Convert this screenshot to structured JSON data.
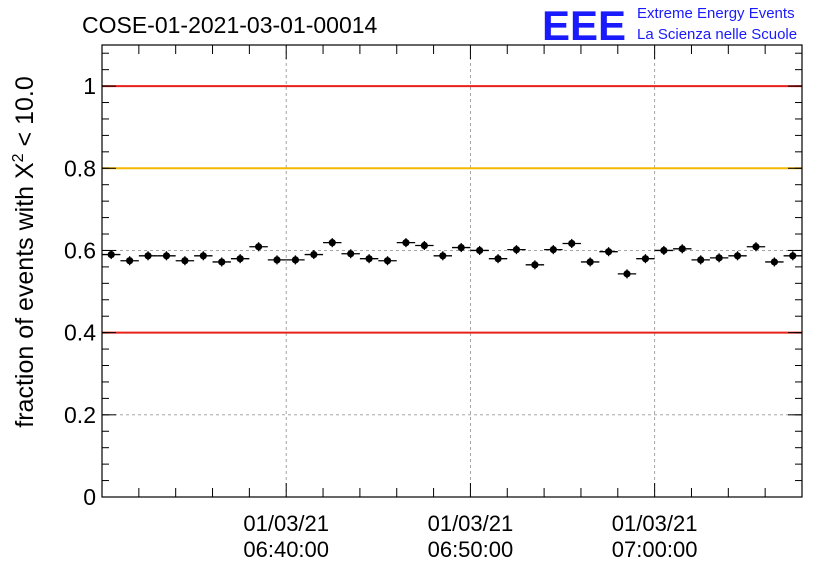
{
  "chart_data": {
    "type": "scatter",
    "title": "COSE-01-2021-03-01-00014",
    "ylabel": "fraction of events with X",
    "ylabel_sup": "2",
    "ylabel_tail": " < 10.0",
    "logo": {
      "letters": "EEE",
      "line1": "Extreme Energy Events",
      "line2": "La Scienza nelle Scuole",
      "color": "#1a1aff"
    },
    "ylim": [
      0,
      1.1
    ],
    "yticks": [
      {
        "value": 0,
        "label": "0"
      },
      {
        "value": 0.2,
        "label": "0.2"
      },
      {
        "value": 0.4,
        "label": "0.4"
      },
      {
        "value": 0.6,
        "label": "0.6"
      },
      {
        "value": 0.8,
        "label": "0.8"
      },
      {
        "value": 1,
        "label": "1"
      }
    ],
    "xlim_minutes": [
      0,
      38
    ],
    "xticks": [
      {
        "minute": 10,
        "date": "01/03/21",
        "time": "06:40:00"
      },
      {
        "minute": 20,
        "date": "01/03/21",
        "time": "06:50:00"
      },
      {
        "minute": 30,
        "date": "01/03/21",
        "time": "07:00:00"
      }
    ],
    "grid": true,
    "reference_lines": [
      {
        "value": 1.0,
        "color": "#e8201a"
      },
      {
        "value": 0.8,
        "color": "#f5b800"
      },
      {
        "value": 0.4,
        "color": "#e8201a"
      }
    ],
    "marker_color": "#000000",
    "y_error": 0.011,
    "values": [
      0.59,
      0.575,
      0.587,
      0.587,
      0.575,
      0.587,
      0.572,
      0.58,
      0.609,
      0.577,
      0.577,
      0.59,
      0.619,
      0.592,
      0.58,
      0.575,
      0.619,
      0.612,
      0.587,
      0.607,
      0.6,
      0.58,
      0.602,
      0.565,
      0.602,
      0.617,
      0.572,
      0.597,
      0.543,
      0.58,
      0.6,
      0.604,
      0.577,
      0.582,
      0.587,
      0.609,
      0.572,
      0.587
    ]
  }
}
